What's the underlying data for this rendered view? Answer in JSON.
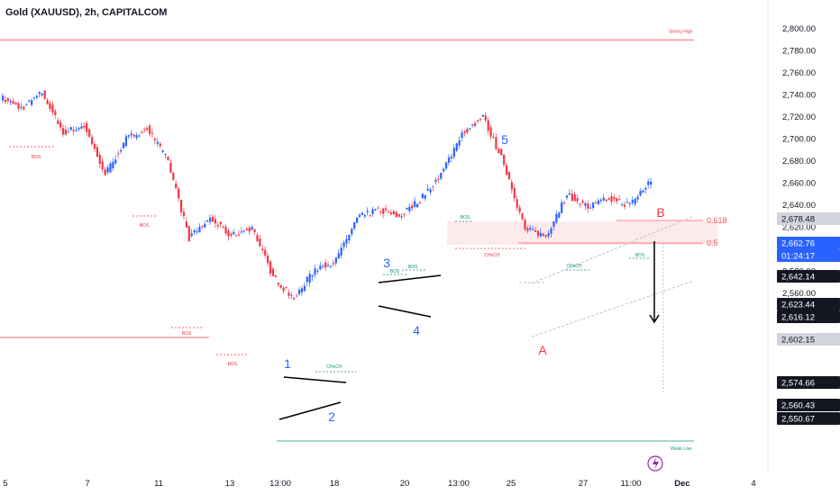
{
  "header": {
    "title": "Gold (XAUUSD), 2h, CAPITALCOM"
  },
  "colors": {
    "bull": "#2962ff",
    "bear": "#f23645",
    "wave_blue": "#2962ff",
    "wave_red": "#f23645",
    "bos_red": "#f23645",
    "bos_green": "#089981",
    "weak_low": "#089981",
    "zone": "#fde8ea",
    "fib": "#f7525f",
    "dark_tag": "#131722",
    "grey_tag": "#d1d4dc"
  },
  "chart_data": {
    "type": "candlestick",
    "title": "Gold (XAUUSD), 2h, CAPITALCOM",
    "y_ticks": [
      "2,800.00",
      "2,780.00",
      "2,760.00",
      "2,740.00",
      "2,720.00",
      "2,700.00",
      "2,680.00",
      "2,660.00",
      "2,640.00",
      "2,620.00",
      "2,600.00",
      "2,580.00",
      "2,560.00",
      "2,540.00",
      "2,520.00"
    ],
    "ylim": [
      2515,
      2810
    ],
    "x_ticks": [
      "5",
      "7",
      "11",
      "13",
      "13:00",
      "18",
      "20",
      "13:00",
      "25",
      "27",
      "11:00",
      "Dec",
      "4"
    ],
    "price_tags": [
      {
        "label": "2,678.48",
        "style": "grey"
      },
      {
        "label": "2,662.76",
        "style": "blue"
      },
      {
        "label": "01:24:17",
        "style": "blue"
      },
      {
        "label": "2,642.14",
        "style": "dark"
      },
      {
        "label": "2,623.44",
        "style": "dark"
      },
      {
        "label": "2,616.12",
        "style": "dark"
      },
      {
        "label": "2,602.15",
        "style": "grey"
      },
      {
        "label": "2,574.66",
        "style": "dark"
      },
      {
        "label": "2,560.43",
        "style": "dark"
      },
      {
        "label": "2,550.67",
        "style": "dark"
      }
    ],
    "price_path": [
      {
        "x": "5",
        "y": 2738
      },
      {
        "x": "6",
        "y": 2728
      },
      {
        "x": "6",
        "y": 2742
      },
      {
        "x": "7",
        "y": 2706
      },
      {
        "x": "7",
        "y": 2712
      },
      {
        "x": "8",
        "y": 2668
      },
      {
        "x": "8",
        "y": 2700
      },
      {
        "x": "11",
        "y": 2710
      },
      {
        "x": "11",
        "y": 2680
      },
      {
        "x": "12",
        "y": 2610
      },
      {
        "x": "12",
        "y": 2628
      },
      {
        "x": "12",
        "y": 2612
      },
      {
        "x": "13",
        "y": 2620
      },
      {
        "x": "13",
        "y": 2575
      },
      {
        "x": "13:00",
        "y": 2555
      },
      {
        "x": "18",
        "y": 2582
      },
      {
        "x": "18",
        "y": 2590
      },
      {
        "x": "19",
        "y": 2628
      },
      {
        "x": "20",
        "y": 2636
      },
      {
        "x": "20",
        "y": 2630
      },
      {
        "x": "21",
        "y": 2645
      },
      {
        "x": "13:00",
        "y": 2668
      },
      {
        "x": "22",
        "y": 2705
      },
      {
        "x": "25",
        "y": 2720
      },
      {
        "x": "25",
        "y": 2678
      },
      {
        "x": "25",
        "y": 2618
      },
      {
        "x": "26",
        "y": 2612
      },
      {
        "x": "27",
        "y": 2650
      },
      {
        "x": "27",
        "y": 2638
      },
      {
        "x": "11:00",
        "y": 2646
      },
      {
        "x": "28",
        "y": 2640
      },
      {
        "x": "28",
        "y": 2662.76
      }
    ],
    "waves": [
      "1",
      "2",
      "3",
      "4",
      "5",
      "A",
      "B"
    ],
    "levels": [
      {
        "label": "Strong High",
        "price": 2790
      },
      {
        "label": "Weak Low",
        "price": 2537
      },
      {
        "label": "0.618",
        "price": 2671.5
      },
      {
        "label": "0.5",
        "price": 2663
      }
    ],
    "markers": [
      "BOS",
      "CHoCH"
    ]
  },
  "annotations": {
    "strong_high": "Strong High",
    "weak_low": "Weak Low",
    "fib_618": "0.618",
    "fib_05": "0.5",
    "bos": "BOS",
    "choch": "CHoCH"
  }
}
